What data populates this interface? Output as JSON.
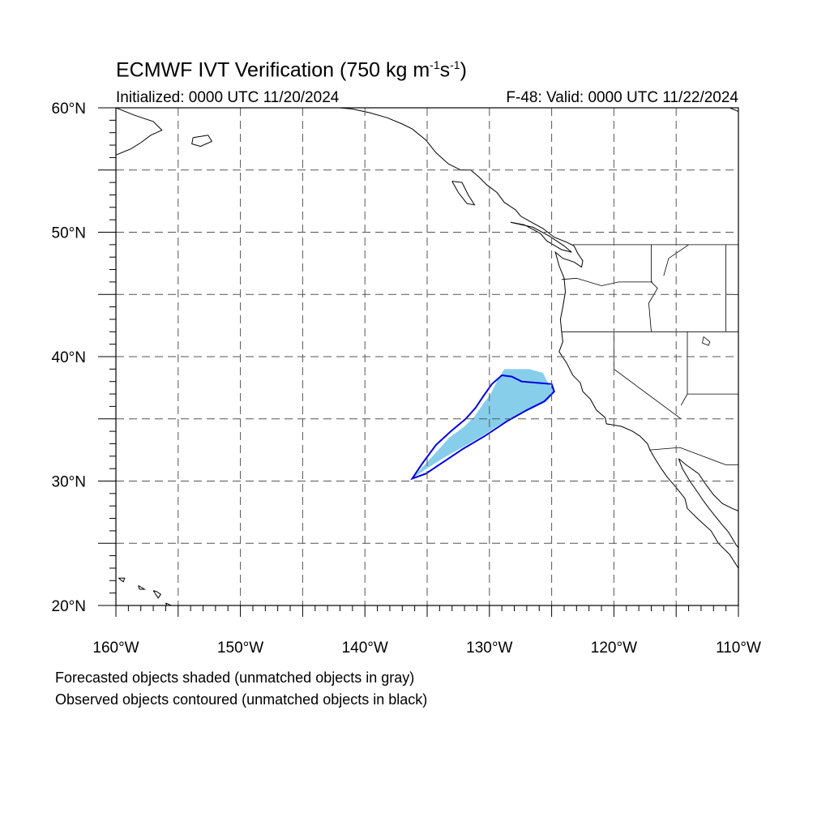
{
  "title": {
    "prefix": "ECMWF IVT Verification (750 kg m",
    "sup1": "-1",
    "mid": "s",
    "sup2": "-1",
    "suffix": ")"
  },
  "initialized": "Initialized: 0000 UTC 11/20/2024",
  "valid": "F-48: Valid: 0000 UTC 11/22/2024",
  "map": {
    "lon_range": [
      -160,
      -110
    ],
    "lat_range": [
      20,
      60
    ],
    "grid_lon": [
      -155,
      -150,
      -145,
      -140,
      -135,
      -130,
      -125,
      -120,
      -115
    ],
    "grid_lat": [
      25,
      30,
      35,
      40,
      45,
      50,
      55
    ],
    "lat_labels": [
      "20°N",
      "30°N",
      "40°N",
      "50°N",
      "60°N"
    ],
    "lat_label_values": [
      20,
      30,
      40,
      50,
      60
    ],
    "lon_labels": [
      "160°W",
      "150°W",
      "140°W",
      "130°W",
      "120°W",
      "110°W"
    ],
    "lon_label_values": [
      -160,
      -150,
      -140,
      -130,
      -120,
      -110
    ],
    "forecast_color": "#87ceeb",
    "observed_color": "#0000dd",
    "forecast_object": [
      [
        -136.2,
        30.2
      ],
      [
        -135.2,
        30.9
      ],
      [
        -133.6,
        31.9
      ],
      [
        -132.2,
        32.7
      ],
      [
        -130.6,
        33.6
      ],
      [
        -129.4,
        34.4
      ],
      [
        -128.0,
        35.2
      ],
      [
        -126.6,
        35.8
      ],
      [
        -125.4,
        36.4
      ],
      [
        -124.7,
        37.2
      ],
      [
        -125.3,
        37.9
      ],
      [
        -125.7,
        38.7
      ],
      [
        -126.8,
        39.0
      ],
      [
        -128.8,
        39.0
      ],
      [
        -129.3,
        38.2
      ],
      [
        -129.9,
        37.0
      ],
      [
        -130.5,
        36.2
      ],
      [
        -131.2,
        35.2
      ],
      [
        -132.0,
        34.4
      ],
      [
        -133.2,
        33.5
      ],
      [
        -134.3,
        32.3
      ],
      [
        -135.3,
        31.2
      ]
    ],
    "observed_object": [
      [
        -136.2,
        30.2
      ],
      [
        -135.1,
        30.6
      ],
      [
        -133.6,
        31.6
      ],
      [
        -132.1,
        32.6
      ],
      [
        -130.4,
        33.6
      ],
      [
        -128.6,
        34.8
      ],
      [
        -127.0,
        35.7
      ],
      [
        -125.6,
        36.4
      ],
      [
        -124.8,
        37.2
      ],
      [
        -125.0,
        37.8
      ],
      [
        -126.2,
        37.9
      ],
      [
        -127.4,
        38.0
      ],
      [
        -128.2,
        38.4
      ],
      [
        -129.0,
        38.5
      ],
      [
        -129.8,
        37.8
      ],
      [
        -130.5,
        36.8
      ],
      [
        -131.1,
        35.9
      ],
      [
        -131.9,
        35.0
      ],
      [
        -133.1,
        34.0
      ],
      [
        -134.3,
        32.9
      ],
      [
        -135.4,
        31.4
      ]
    ],
    "coastlines": [
      [
        [
          -160,
          60
        ],
        [
          -158.5,
          59.4
        ],
        [
          -157,
          58.9
        ],
        [
          -156.3,
          58.2
        ],
        [
          -157.2,
          57.8
        ],
        [
          -158,
          57.2
        ],
        [
          -158.8,
          56.7
        ],
        [
          -160,
          56.2
        ]
      ],
      [
        [
          -153.8,
          57.6
        ],
        [
          -152.6,
          57.8
        ],
        [
          -152.3,
          57.3
        ],
        [
          -153.2,
          56.9
        ],
        [
          -153.9,
          57.1
        ],
        [
          -153.8,
          57.6
        ]
      ],
      [
        [
          -149,
          60
        ],
        [
          -148.2,
          60.2
        ],
        [
          -146.5,
          60.4
        ],
        [
          -145,
          60.2
        ],
        [
          -143,
          60.1
        ],
        [
          -141,
          59.9
        ],
        [
          -139.6,
          59.6
        ],
        [
          -138.2,
          59.2
        ],
        [
          -137,
          58.7
        ],
        [
          -136.2,
          58.3
        ],
        [
          -135.1,
          57.4
        ],
        [
          -134.3,
          56.4
        ],
        [
          -133.3,
          55.5
        ],
        [
          -132.3,
          55
        ],
        [
          -131.5,
          55
        ],
        [
          -130.8,
          54.4
        ],
        [
          -130.2,
          53.8
        ],
        [
          -129.4,
          53.2
        ],
        [
          -128.8,
          52.4
        ],
        [
          -127.9,
          51.8
        ],
        [
          -127.5,
          51.3
        ],
        [
          -126.8,
          50.9
        ],
        [
          -125.7,
          50.3
        ],
        [
          -124.8,
          49.6
        ],
        [
          -123.8,
          49.2
        ],
        [
          -123.2,
          48.9
        ],
        [
          -122.9,
          48.3
        ],
        [
          -122.5,
          47.7
        ],
        [
          -122.6,
          47.2
        ],
        [
          -123.2,
          47.6
        ],
        [
          -124.1,
          47.9
        ],
        [
          -124.7,
          48.4
        ],
        [
          -124.4,
          47.3
        ],
        [
          -124,
          46.3
        ],
        [
          -123.9,
          45.2
        ],
        [
          -124.1,
          44
        ],
        [
          -124.3,
          43
        ],
        [
          -124.2,
          42
        ],
        [
          -124.1,
          41.2
        ],
        [
          -124.4,
          40.4
        ],
        [
          -123.8,
          39.5
        ],
        [
          -123.3,
          38.5
        ],
        [
          -122.7,
          37.9
        ],
        [
          -122.5,
          37.2
        ],
        [
          -121.9,
          36.6
        ],
        [
          -121.4,
          35.7
        ],
        [
          -120.7,
          35.1
        ],
        [
          -120.6,
          34.6
        ],
        [
          -119.4,
          34.4
        ],
        [
          -118.5,
          34
        ],
        [
          -117.9,
          33.6
        ],
        [
          -117.3,
          33
        ],
        [
          -117.1,
          32.5
        ],
        [
          -116.7,
          31.8
        ],
        [
          -116.2,
          31
        ],
        [
          -115.7,
          30.3
        ],
        [
          -115.1,
          29.6
        ],
        [
          -114.3,
          28.6
        ],
        [
          -114.1,
          27.8
        ],
        [
          -113.3,
          27
        ],
        [
          -112.2,
          26
        ],
        [
          -111.6,
          25
        ],
        [
          -110.7,
          24.1
        ],
        [
          -110,
          23
        ]
      ],
      [
        [
          -128.3,
          50.8
        ],
        [
          -127.2,
          50.6
        ],
        [
          -125.9,
          49.9
        ],
        [
          -125.4,
          49.3
        ],
        [
          -124.2,
          48.6
        ],
        [
          -123.4,
          48.4
        ],
        [
          -124,
          48.9
        ],
        [
          -125.2,
          49.7
        ],
        [
          -126.5,
          50.4
        ],
        [
          -128.3,
          50.8
        ]
      ],
      [
        [
          -133,
          54.1
        ],
        [
          -132.2,
          54
        ],
        [
          -131.7,
          53
        ],
        [
          -131.2,
          52.2
        ],
        [
          -131.8,
          52.3
        ],
        [
          -132.5,
          53.2
        ],
        [
          -133,
          54.1
        ]
      ],
      [
        [
          -114.8,
          31.8
        ],
        [
          -114.5,
          31
        ],
        [
          -113.9,
          30
        ],
        [
          -113.2,
          29
        ],
        [
          -112.8,
          28.4
        ],
        [
          -112.2,
          27.6
        ],
        [
          -111.4,
          26.6
        ],
        [
          -110.8,
          25.9
        ],
        [
          -110.2,
          24.9
        ],
        [
          -109.4,
          23.9
        ],
        [
          -109.5,
          23.2
        ],
        [
          -110,
          23
        ]
      ],
      [
        [
          -110,
          27.6
        ],
        [
          -110.5,
          27.8
        ],
        [
          -111.3,
          28.2
        ],
        [
          -112,
          28.9
        ],
        [
          -112.6,
          29.7
        ],
        [
          -113.2,
          30.6
        ],
        [
          -114.2,
          31.3
        ],
        [
          -114.8,
          31.8
        ]
      ],
      [
        [
          -159.8,
          22.2
        ],
        [
          -159.3,
          22.2
        ],
        [
          -159.4,
          21.9
        ],
        [
          -159.8,
          22.2
        ]
      ],
      [
        [
          -158.2,
          21.6
        ],
        [
          -157.7,
          21.3
        ],
        [
          -158.1,
          21.3
        ],
        [
          -158.2,
          21.6
        ]
      ],
      [
        [
          -157,
          21.2
        ],
        [
          -156.7,
          21.1
        ],
        [
          -156.4,
          20.9
        ],
        [
          -156.6,
          20.6
        ],
        [
          -157,
          21.2
        ]
      ],
      [
        [
          -156,
          20.2
        ],
        [
          -155.1,
          19.8
        ],
        [
          -155.5,
          19.1
        ],
        [
          -156,
          20.2
        ]
      ],
      [
        [
          -110.7,
          60
        ],
        [
          -110,
          59.7
        ]
      ]
    ],
    "borders": [
      [
        [
          -141,
          60
        ],
        [
          -141,
          60.2
        ]
      ],
      [
        [
          -123.3,
          49
        ],
        [
          -110,
          49
        ]
      ],
      [
        [
          -124.2,
          46.2
        ],
        [
          -123,
          46.3
        ],
        [
          -121,
          45.7
        ],
        [
          -119.6,
          46
        ],
        [
          -116.9,
          46
        ]
      ],
      [
        [
          -124.2,
          42
        ],
        [
          -110,
          42
        ]
      ],
      [
        [
          -120,
          42
        ],
        [
          -120,
          39
        ],
        [
          -114.6,
          35
        ]
      ],
      [
        [
          -117.1,
          32.5
        ],
        [
          -114.7,
          32.7
        ],
        [
          -111,
          31.3
        ],
        [
          -110,
          31.3
        ]
      ],
      [
        [
          -117,
          49
        ],
        [
          -117,
          46
        ],
        [
          -116.5,
          45.5
        ],
        [
          -117.2,
          44.3
        ],
        [
          -117,
          42
        ]
      ],
      [
        [
          -114.1,
          42
        ],
        [
          -114.1,
          37
        ],
        [
          -114.6,
          36.1
        ]
      ],
      [
        [
          -111,
          49
        ],
        [
          -111,
          42
        ]
      ],
      [
        [
          -114,
          49
        ],
        [
          -115.6,
          47.9
        ],
        [
          -116,
          46.5
        ]
      ],
      [
        [
          -114.1,
          37
        ],
        [
          -110,
          37
        ]
      ],
      [
        [
          -111,
          45
        ],
        [
          -110,
          45
        ]
      ]
    ],
    "lakes": [
      [
        [
          -112.8,
          41.6
        ],
        [
          -112.3,
          41.2
        ],
        [
          -112.4,
          40.9
        ],
        [
          -112.9,
          41.1
        ],
        [
          -112.8,
          41.6
        ]
      ]
    ]
  },
  "footnotes": [
    "Forecasted objects shaded (unmatched objects in gray)",
    "Observed objects contoured (unmatched objects in black)"
  ]
}
